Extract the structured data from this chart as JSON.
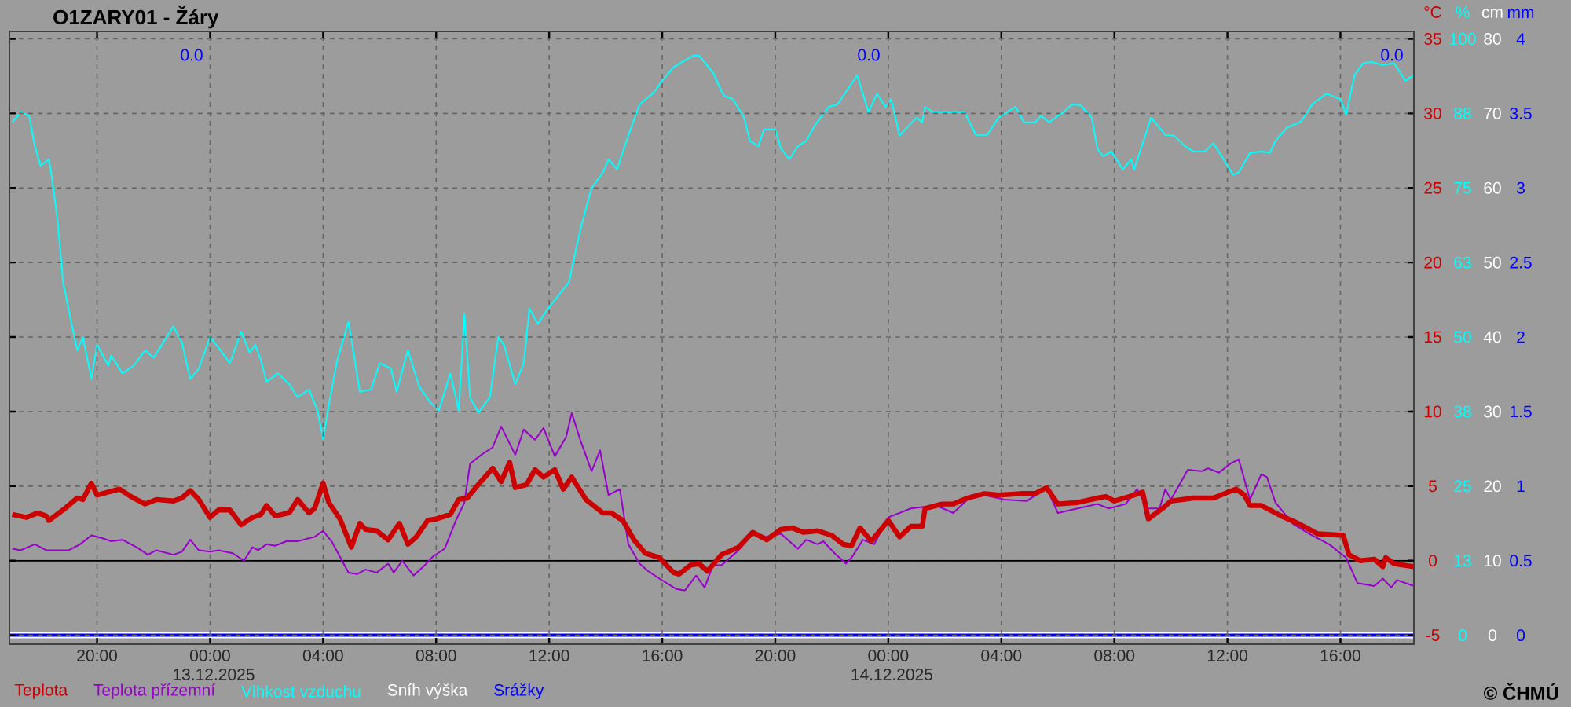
{
  "chart_data": {
    "type": "line",
    "title": "O1ZARY01 - Žáry",
    "xlim": [
      "2025-12-12T16:54",
      "2025-12-14T18:36"
    ],
    "xticks": [
      {
        "value": "2025-12-12T20:00",
        "label": "20:00"
      },
      {
        "value": "2025-12-13T00:00",
        "label": "00:00 13.12.2025"
      },
      {
        "value": "2025-12-13T04:00",
        "label": "04:00"
      },
      {
        "value": "2025-12-13T08:00",
        "label": "08:00"
      },
      {
        "value": "2025-12-13T12:00",
        "label": "12:00"
      },
      {
        "value": "2025-12-13T16:00",
        "label": "16:00"
      },
      {
        "value": "2025-12-13T20:00",
        "label": "20:00"
      },
      {
        "value": "2025-12-14T00:00",
        "label": "00:00 14.12.2025"
      },
      {
        "value": "2025-12-14T04:00",
        "label": "04:00"
      },
      {
        "value": "2025-12-14T08:00",
        "label": "08:00"
      },
      {
        "value": "2025-12-14T12:00",
        "label": "12:00"
      },
      {
        "value": "2025-12-14T16:00",
        "label": "16:00"
      }
    ],
    "ylabel": "°C",
    "y2label": "%",
    "y3label": "cm",
    "ylim": [
      -5.6,
      35.5
    ],
    "yticks": [
      -5,
      0,
      5,
      10,
      15,
      20,
      25,
      30,
      35
    ],
    "y2lim": [
      -1.5,
      101.25
    ],
    "y2ticks": [
      0,
      {
        "value": 12.5,
        "label": "13"
      },
      25,
      {
        "value": 37.5,
        "label": "38"
      },
      50,
      {
        "value": 62.5,
        "label": "63"
      },
      75,
      {
        "value": 87.5,
        "label": "88"
      },
      100
    ],
    "y3lim": [
      -1.2,
      81
    ],
    "y3ticks": [
      0,
      10,
      20,
      30,
      40,
      50,
      60,
      70,
      80
    ],
    "grid": true,
    "legend": "bottom left",
    "ref_lines": [
      {
        "axis": "y",
        "value": 0,
        "color": "#000000"
      }
    ],
    "annotations": [
      "0.0",
      "0.0",
      "0.0",
      "mm",
      "0",
      "0.5",
      "1",
      "1.5",
      "2",
      "2.5",
      "3",
      "3.5",
      "4",
      "© ČHMÚ"
    ],
    "series": [
      {
        "name": "Teplota",
        "color": "#cc0000",
        "axis": "y",
        "x": [
          "2025-12-12T17:00",
          "2025-12-12T17:30",
          "2025-12-12T17:54",
          "2025-12-12T18:12",
          "2025-12-12T18:18",
          "2025-12-12T18:48",
          "2025-12-12T19:18",
          "2025-12-12T19:30",
          "2025-12-12T19:48",
          "2025-12-12T20:00",
          "2025-12-12T20:24",
          "2025-12-12T20:48",
          "2025-12-12T21:12",
          "2025-12-12T21:42",
          "2025-12-12T22:06",
          "2025-12-12T22:42",
          "2025-12-12T23:00",
          "2025-12-12T23:18",
          "2025-12-12T23:36",
          "2025-12-13T00:00",
          "2025-12-13T00:18",
          "2025-12-13T00:42",
          "2025-12-13T01:06",
          "2025-12-13T01:30",
          "2025-12-13T01:48",
          "2025-12-13T02:00",
          "2025-12-13T02:18",
          "2025-12-13T02:48",
          "2025-12-13T03:06",
          "2025-12-13T03:30",
          "2025-12-13T03:42",
          "2025-12-13T04:00",
          "2025-12-13T04:12",
          "2025-12-13T04:36",
          "2025-12-13T05:00",
          "2025-12-13T05:18",
          "2025-12-13T05:30",
          "2025-12-13T05:54",
          "2025-12-13T06:18",
          "2025-12-13T06:42",
          "2025-12-13T07:00",
          "2025-12-13T07:18",
          "2025-12-13T07:42",
          "2025-12-13T08:00",
          "2025-12-13T08:30",
          "2025-12-13T08:48",
          "2025-12-13T09:06",
          "2025-12-13T09:24",
          "2025-12-13T10:00",
          "2025-12-13T10:18",
          "2025-12-13T10:36",
          "2025-12-13T10:48",
          "2025-12-13T11:12",
          "2025-12-13T11:30",
          "2025-12-13T11:48",
          "2025-12-13T12:12",
          "2025-12-13T12:30",
          "2025-12-13T12:48",
          "2025-12-13T13:18",
          "2025-12-13T13:54",
          "2025-12-13T14:12",
          "2025-12-13T14:36",
          "2025-12-13T15:00",
          "2025-12-13T15:24",
          "2025-12-13T15:54",
          "2025-12-13T16:24",
          "2025-12-13T16:36",
          "2025-12-13T17:00",
          "2025-12-13T17:18",
          "2025-12-13T17:36",
          "2025-12-13T18:06",
          "2025-12-13T18:42",
          "2025-12-13T19:12",
          "2025-12-13T19:42",
          "2025-12-13T20:12",
          "2025-12-13T20:36",
          "2025-12-13T21:00",
          "2025-12-13T21:30",
          "2025-12-13T22:00",
          "2025-12-13T22:24",
          "2025-12-13T22:42",
          "2025-12-13T23:00",
          "2025-12-13T23:24",
          "2025-12-14T00:00",
          "2025-12-14T00:24",
          "2025-12-14T00:48",
          "2025-12-14T01:12",
          "2025-12-14T01:18",
          "2025-12-14T01:54",
          "2025-12-14T02:18",
          "2025-12-14T02:48",
          "2025-12-14T03:24",
          "2025-12-14T03:54",
          "2025-12-14T04:42",
          "2025-12-14T05:12",
          "2025-12-14T05:36",
          "2025-12-14T06:00",
          "2025-12-14T06:42",
          "2025-12-14T07:24",
          "2025-12-14T07:42",
          "2025-12-14T08:00",
          "2025-12-14T08:42",
          "2025-12-14T09:00",
          "2025-12-14T09:12",
          "2025-12-14T09:42",
          "2025-12-14T10:00",
          "2025-12-14T10:48",
          "2025-12-14T11:30",
          "2025-12-14T12:18",
          "2025-12-14T12:36",
          "2025-12-14T12:48",
          "2025-12-14T13:12",
          "2025-12-14T13:54",
          "2025-12-14T14:30",
          "2025-12-14T15:12",
          "2025-12-14T16:06",
          "2025-12-14T16:18",
          "2025-12-14T16:42",
          "2025-12-14T17:12",
          "2025-12-14T17:30",
          "2025-12-14T17:36",
          "2025-12-14T17:54",
          "2025-12-14T18:36"
        ],
        "values": [
          3.1,
          2.9,
          3.2,
          3.0,
          2.7,
          3.4,
          4.2,
          4.1,
          5.2,
          4.4,
          4.6,
          4.8,
          4.3,
          3.8,
          4.1,
          4.0,
          4.2,
          4.7,
          4.1,
          2.9,
          3.4,
          3.4,
          2.4,
          2.9,
          3.1,
          3.7,
          3.0,
          3.2,
          4.1,
          3.2,
          3.5,
          5.2,
          3.9,
          2.8,
          0.9,
          2.5,
          2.1,
          2.0,
          1.4,
          2.5,
          1.1,
          1.6,
          2.7,
          2.8,
          3.1,
          4.1,
          4.2,
          4.9,
          6.2,
          5.3,
          6.6,
          4.9,
          5.1,
          6.1,
          5.6,
          6.1,
          4.8,
          5.6,
          4.1,
          3.2,
          3.2,
          2.7,
          1.4,
          0.5,
          0.2,
          -0.8,
          -0.9,
          -0.3,
          -0.2,
          -0.7,
          0.4,
          0.9,
          1.9,
          1.4,
          2.1,
          2.2,
          1.9,
          2.0,
          1.7,
          1.1,
          1.0,
          2.2,
          1.3,
          2.7,
          1.6,
          2.3,
          2.3,
          3.5,
          3.8,
          3.8,
          4.2,
          4.5,
          4.4,
          4.5,
          4.5,
          4.9,
          3.8,
          3.9,
          4.2,
          4.3,
          4.0,
          4.4,
          4.6,
          2.8,
          3.5,
          4.0,
          4.2,
          4.2,
          4.8,
          4.4,
          3.7,
          3.7,
          3.0,
          2.5,
          1.8,
          1.7,
          0.4,
          0.0,
          0.1,
          -0.4,
          0.2,
          -0.2,
          -0.4
        ]
      },
      {
        "name": "Teplota přízemní",
        "color": "#9900cc",
        "axis": "y",
        "x": [
          "2025-12-12T17:00",
          "2025-12-12T17:18",
          "2025-12-12T17:48",
          "2025-12-12T18:12",
          "2025-12-12T19:00",
          "2025-12-12T19:24",
          "2025-12-12T19:48",
          "2025-12-12T20:12",
          "2025-12-12T20:30",
          "2025-12-12T20:54",
          "2025-12-12T21:24",
          "2025-12-12T21:48",
          "2025-12-12T22:06",
          "2025-12-12T22:42",
          "2025-12-12T23:00",
          "2025-12-12T23:18",
          "2025-12-12T23:36",
          "2025-12-13T00:00",
          "2025-12-13T00:18",
          "2025-12-13T00:48",
          "2025-12-13T01:12",
          "2025-12-13T01:30",
          "2025-12-13T01:42",
          "2025-12-13T02:00",
          "2025-12-13T02:18",
          "2025-12-13T02:42",
          "2025-12-13T03:06",
          "2025-12-13T03:42",
          "2025-12-13T04:00",
          "2025-12-13T04:18",
          "2025-12-13T04:54",
          "2025-12-13T05:12",
          "2025-12-13T05:30",
          "2025-12-13T05:54",
          "2025-12-13T06:18",
          "2025-12-13T06:30",
          "2025-12-13T06:48",
          "2025-12-13T07:12",
          "2025-12-13T07:36",
          "2025-12-13T07:54",
          "2025-12-13T08:18",
          "2025-12-13T08:42",
          "2025-12-13T09:00",
          "2025-12-13T09:12",
          "2025-12-13T09:36",
          "2025-12-13T10:00",
          "2025-12-13T10:18",
          "2025-12-13T10:48",
          "2025-12-13T11:06",
          "2025-12-13T11:30",
          "2025-12-13T11:48",
          "2025-12-13T12:12",
          "2025-12-13T12:36",
          "2025-12-13T12:48",
          "2025-12-13T13:06",
          "2025-12-13T13:30",
          "2025-12-13T13:48",
          "2025-12-13T14:06",
          "2025-12-13T14:30",
          "2025-12-13T14:48",
          "2025-12-13T15:12",
          "2025-12-13T15:30",
          "2025-12-13T15:54",
          "2025-12-13T16:30",
          "2025-12-13T16:48",
          "2025-12-13T17:12",
          "2025-12-13T17:30",
          "2025-12-13T17:48",
          "2025-12-13T18:06",
          "2025-12-13T18:42",
          "2025-12-13T19:12",
          "2025-12-13T19:42",
          "2025-12-13T20:12",
          "2025-12-13T20:48",
          "2025-12-13T21:06",
          "2025-12-13T21:30",
          "2025-12-13T21:42",
          "2025-12-13T22:06",
          "2025-12-13T22:30",
          "2025-12-13T22:42",
          "2025-12-13T23:06",
          "2025-12-13T23:30",
          "2025-12-14T00:00",
          "2025-12-14T00:48",
          "2025-12-14T01:12",
          "2025-12-14T01:42",
          "2025-12-14T02:18",
          "2025-12-14T02:48",
          "2025-12-14T03:24",
          "2025-12-14T04:06",
          "2025-12-14T04:54",
          "2025-12-14T05:36",
          "2025-12-14T06:00",
          "2025-12-14T06:42",
          "2025-12-14T07:24",
          "2025-12-14T07:48",
          "2025-12-14T08:24",
          "2025-12-14T08:48",
          "2025-12-14T09:12",
          "2025-12-14T09:36",
          "2025-12-14T09:48",
          "2025-12-14T10:00",
          "2025-12-14T10:36",
          "2025-12-14T11:06",
          "2025-12-14T11:18",
          "2025-12-14T11:42",
          "2025-12-14T12:06",
          "2025-12-14T12:24",
          "2025-12-14T12:48",
          "2025-12-14T13:12",
          "2025-12-14T13:24",
          "2025-12-14T13:42",
          "2025-12-14T14:18",
          "2025-12-14T14:54",
          "2025-12-14T15:36",
          "2025-12-14T16:12",
          "2025-12-14T16:36",
          "2025-12-14T17:12",
          "2025-12-14T17:30",
          "2025-12-14T17:48",
          "2025-12-14T18:00",
          "2025-12-14T18:36"
        ],
        "values": [
          0.8,
          0.7,
          1.1,
          0.7,
          0.7,
          1.1,
          1.7,
          1.5,
          1.3,
          1.4,
          0.9,
          0.4,
          0.7,
          0.4,
          0.6,
          1.4,
          0.7,
          0.6,
          0.7,
          0.5,
          0.0,
          0.9,
          0.7,
          1.1,
          1.0,
          1.3,
          1.3,
          1.6,
          2.0,
          1.3,
          -0.8,
          -0.9,
          -0.6,
          -0.8,
          -0.2,
          -0.8,
          0.0,
          -1.0,
          -0.3,
          0.3,
          0.8,
          2.7,
          3.9,
          6.5,
          7.1,
          7.6,
          9.0,
          7.1,
          8.8,
          8.1,
          8.9,
          7.0,
          8.3,
          9.9,
          8.1,
          6.0,
          7.4,
          4.4,
          4.8,
          1.1,
          -0.2,
          -0.7,
          -1.2,
          -1.9,
          -2.0,
          -1.0,
          -1.8,
          -0.3,
          -0.3,
          0.7,
          1.8,
          1.6,
          1.8,
          0.8,
          1.4,
          1.1,
          1.3,
          0.5,
          -0.2,
          0.2,
          1.4,
          1.1,
          2.9,
          3.5,
          3.6,
          3.7,
          3.2,
          4.1,
          4.4,
          4.1,
          4.0,
          4.9,
          3.2,
          3.5,
          3.8,
          3.5,
          3.8,
          4.8,
          3.5,
          3.5,
          4.8,
          4.1,
          6.1,
          6.0,
          6.2,
          5.9,
          6.5,
          6.8,
          4.1,
          5.8,
          5.6,
          3.9,
          2.5,
          1.8,
          1.1,
          0.2,
          -1.5,
          -1.7,
          -1.2,
          -1.8,
          -1.3,
          -1.7
        ]
      },
      {
        "name": "Vlhkost vzduchu",
        "color": "#00ffff",
        "axis": "y2",
        "x": [
          "2025-12-12T17:00",
          "2025-12-12T17:18",
          "2025-12-12T17:36",
          "2025-12-12T17:48",
          "2025-12-12T18:00",
          "2025-12-12T18:18",
          "2025-12-12T18:24",
          "2025-12-12T18:36",
          "2025-12-12T18:48",
          "2025-12-12T19:06",
          "2025-12-12T19:18",
          "2025-12-12T19:30",
          "2025-12-12T19:48",
          "2025-12-12T20:00",
          "2025-12-12T20:24",
          "2025-12-12T20:30",
          "2025-12-12T20:54",
          "2025-12-12T21:18",
          "2025-12-12T21:42",
          "2025-12-12T22:00",
          "2025-12-12T22:42",
          "2025-12-12T23:00",
          "2025-12-12T23:18",
          "2025-12-12T23:36",
          "2025-12-13T00:00",
          "2025-12-13T00:18",
          "2025-12-13T00:42",
          "2025-12-13T01:06",
          "2025-12-13T01:24",
          "2025-12-13T01:36",
          "2025-12-13T01:48",
          "2025-12-13T02:00",
          "2025-12-13T02:24",
          "2025-12-13T02:48",
          "2025-12-13T03:06",
          "2025-12-13T03:30",
          "2025-12-13T03:48",
          "2025-12-13T04:00",
          "2025-12-13T04:12",
          "2025-12-13T04:30",
          "2025-12-13T04:54",
          "2025-12-13T05:18",
          "2025-12-13T05:42",
          "2025-12-13T06:00",
          "2025-12-13T06:24",
          "2025-12-13T06:36",
          "2025-12-13T07:00",
          "2025-12-13T07:24",
          "2025-12-13T07:48",
          "2025-12-13T08:06",
          "2025-12-13T08:30",
          "2025-12-13T08:48",
          "2025-12-13T09:00",
          "2025-12-13T09:12",
          "2025-12-13T09:30",
          "2025-12-13T09:54",
          "2025-12-13T10:12",
          "2025-12-13T10:24",
          "2025-12-13T10:48",
          "2025-12-13T11:06",
          "2025-12-13T11:18",
          "2025-12-13T11:36",
          "2025-12-13T11:54",
          "2025-12-13T12:42",
          "2025-12-13T13:06",
          "2025-12-13T13:30",
          "2025-12-13T13:54",
          "2025-12-13T14:06",
          "2025-12-13T14:24",
          "2025-12-13T14:48",
          "2025-12-13T15:12",
          "2025-12-13T15:42",
          "2025-12-13T16:00",
          "2025-12-13T16:24",
          "2025-12-13T16:42",
          "2025-12-13T17:06",
          "2025-12-13T17:18",
          "2025-12-13T17:48",
          "2025-12-13T18:06",
          "2025-12-13T18:12",
          "2025-12-13T18:30",
          "2025-12-13T18:54",
          "2025-12-13T19:06",
          "2025-12-13T19:24",
          "2025-12-13T19:36",
          "2025-12-13T20:00",
          "2025-12-13T20:12",
          "2025-12-13T20:30",
          "2025-12-13T20:48",
          "2025-12-13T21:06",
          "2025-12-13T21:24",
          "2025-12-13T21:54",
          "2025-12-13T22:12",
          "2025-12-13T22:54",
          "2025-12-13T23:18",
          "2025-12-13T23:36",
          "2025-12-13T23:54",
          "2025-12-14T00:06",
          "2025-12-14T00:24",
          "2025-12-14T01:00",
          "2025-12-14T01:12",
          "2025-12-14T01:18",
          "2025-12-14T01:36",
          "2025-12-14T02:42",
          "2025-12-14T03:06",
          "2025-12-14T03:30",
          "2025-12-14T03:54",
          "2025-12-14T04:30",
          "2025-12-14T04:48",
          "2025-12-14T05:12",
          "2025-12-14T05:24",
          "2025-12-14T05:42",
          "2025-12-14T06:00",
          "2025-12-14T06:12",
          "2025-12-14T06:30",
          "2025-12-14T06:48",
          "2025-12-14T07:12",
          "2025-12-14T07:24",
          "2025-12-14T07:36",
          "2025-12-14T07:54",
          "2025-12-14T08:18",
          "2025-12-14T08:36",
          "2025-12-14T08:42",
          "2025-12-14T09:18",
          "2025-12-14T09:48",
          "2025-12-14T10:06",
          "2025-12-14T10:30",
          "2025-12-14T10:48",
          "2025-12-14T11:12",
          "2025-12-14T11:30",
          "2025-12-14T11:48",
          "2025-12-14T12:12",
          "2025-12-14T12:24",
          "2025-12-14T12:48",
          "2025-12-14T13:12",
          "2025-12-14T13:30",
          "2025-12-14T13:42",
          "2025-12-14T14:06",
          "2025-12-14T14:36",
          "2025-12-14T15:00",
          "2025-12-14T15:30",
          "2025-12-14T16:00",
          "2025-12-14T16:12",
          "2025-12-14T16:30",
          "2025-12-14T16:48",
          "2025-12-14T17:06",
          "2025-12-14T17:30",
          "2025-12-14T17:54",
          "2025-12-14T18:18",
          "2025-12-14T18:36"
        ],
        "values": [
          86.0,
          87.7,
          87.1,
          82.0,
          78.7,
          79.8,
          76.8,
          69.7,
          59.2,
          52.2,
          47.8,
          50.0,
          43.0,
          48.7,
          45.2,
          46.9,
          43.9,
          45.2,
          47.8,
          46.5,
          51.8,
          49.1,
          43.0,
          44.7,
          50.0,
          48.2,
          45.6,
          50.9,
          47.4,
          48.7,
          46.1,
          42.5,
          43.9,
          42.1,
          39.9,
          41.2,
          37.7,
          32.9,
          38.6,
          46.1,
          52.6,
          40.8,
          41.2,
          45.6,
          44.7,
          40.8,
          47.8,
          41.7,
          39.0,
          37.7,
          43.9,
          37.7,
          53.9,
          39.9,
          37.3,
          39.9,
          50.0,
          48.7,
          42.1,
          45.6,
          54.8,
          52.2,
          54.4,
          59.2,
          68.0,
          75.0,
          77.6,
          79.8,
          78.1,
          83.8,
          89.0,
          91.0,
          93.0,
          95.2,
          96.1,
          97.2,
          97.2,
          94.3,
          91.2,
          90.4,
          89.9,
          86.8,
          82.9,
          82.0,
          84.8,
          84.8,
          81.6,
          79.8,
          82.0,
          82.9,
          85.5,
          88.6,
          89.0,
          93.9,
          87.7,
          90.8,
          88.6,
          89.9,
          83.8,
          86.8,
          86.0,
          88.6,
          87.7,
          87.7,
          83.9,
          83.9,
          86.8,
          88.6,
          86.0,
          86.0,
          87.1,
          86.0,
          87.1,
          87.7,
          89.0,
          88.9,
          86.8,
          81.6,
          80.3,
          81.1,
          78.1,
          79.8,
          78.1,
          86.8,
          83.9,
          83.8,
          82.0,
          81.1,
          81.1,
          82.5,
          80.3,
          77.2,
          77.6,
          80.9,
          81.1,
          80.9,
          82.9,
          85.1,
          86.1,
          89.0,
          90.8,
          89.9,
          87.3,
          93.9,
          95.9,
          96.1,
          95.6,
          95.9,
          93.0,
          93.9
        ]
      },
      {
        "name": "Sníh výška",
        "color": "#ffffff",
        "axis": "y3",
        "x": [
          "2025-12-12T16:54",
          "2025-12-14T18:36"
        ],
        "values": [
          0,
          0
        ]
      },
      {
        "name": "Srážky",
        "color": "#0000ff",
        "axis": "y3",
        "x": [
          "2025-12-12T16:54",
          "2025-12-14T18:36"
        ],
        "values": [
          0,
          0
        ]
      }
    ]
  }
}
